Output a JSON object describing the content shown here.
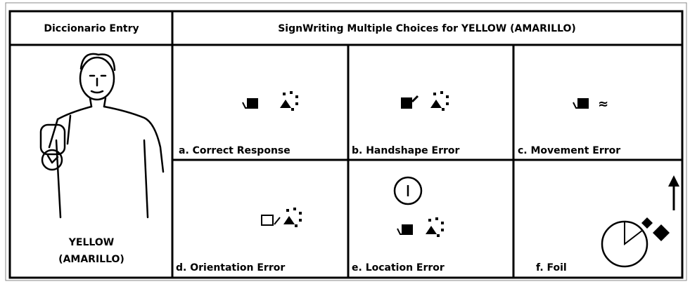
{
  "table": {
    "header": [
      "Diccionario Entry",
      "SignWriting Multiple Choices for YELLOW (AMARILLO)"
    ],
    "entry": [
      "YELLOW",
      "(AMARILLO)"
    ],
    "choices": [
      "a. Correct Response",
      "b. Handshape Error",
      "c. Movement Error",
      "d. Orientation Error",
      "e. Location Error",
      "f. Foil"
    ]
  }
}
